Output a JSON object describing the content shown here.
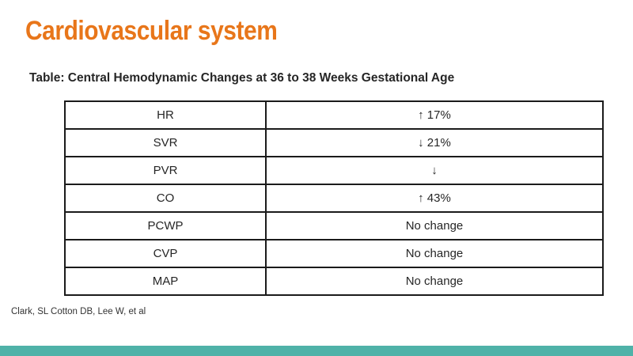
{
  "slide": {
    "title": "Cardiovascular system",
    "subtitle": "Table: Central Hemodynamic Changes at 36 to 38 Weeks Gestational Age",
    "citation": "Clark, SL Cotton DB, Lee W, et al"
  },
  "table": {
    "rows": [
      {
        "parameter": "HR",
        "change": "↑ 17%"
      },
      {
        "parameter": "SVR",
        "change": "↓ 21%"
      },
      {
        "parameter": "PVR",
        "change": "↓"
      },
      {
        "parameter": "CO",
        "change": "↑ 43%"
      },
      {
        "parameter": "PCWP",
        "change": "No change"
      },
      {
        "parameter": "CVP",
        "change": "No change"
      },
      {
        "parameter": "MAP",
        "change": "No change"
      }
    ]
  },
  "colors": {
    "title_orange": "#E8761A",
    "accent_teal": "#4FB2A8",
    "table_border": "#1B1B1B",
    "body_text": "#262626"
  }
}
